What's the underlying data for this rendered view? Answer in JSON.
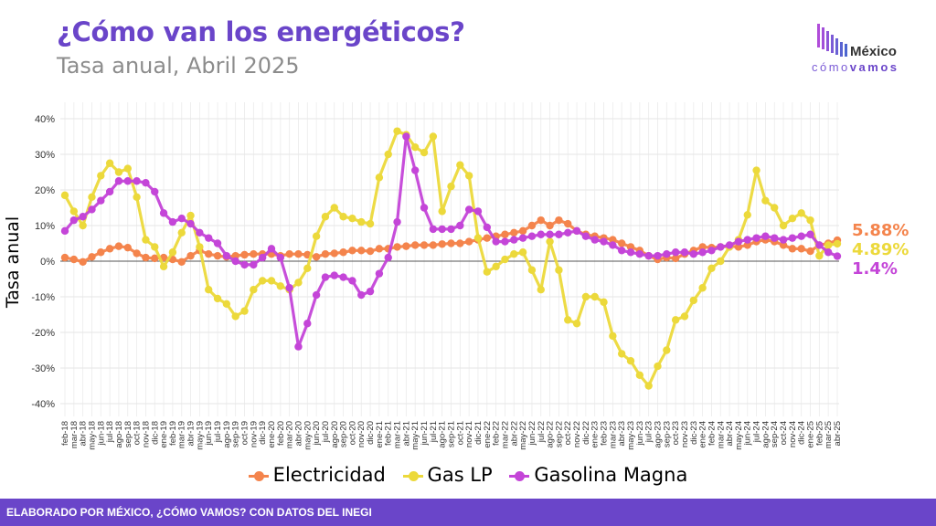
{
  "header": {
    "title": "¿Cómo van los energéticos?",
    "subtitle": "Tasa anual, Abril 2025"
  },
  "logo": {
    "top": "México",
    "bottom_a": "cómo",
    "bottom_b": "vamos"
  },
  "footer": {
    "text": "ELABORADO POR MÉXICO, ¿CÓMO VAMOS? CON DATOS DEL INEGI"
  },
  "colors": {
    "electricidad": "#f4844c",
    "gaslp": "#ecd93b",
    "gasolina": "#c445d8",
    "title": "#6a45c9",
    "footer": "#6a45c9"
  },
  "chart_data": {
    "type": "line",
    "ylabel": "Tasa anual",
    "xlabel": "",
    "ylim": [
      -40,
      40
    ],
    "yticks": [
      -40,
      -30,
      -20,
      -10,
      0,
      10,
      20,
      30,
      40
    ],
    "ytick_labels": [
      "-40%",
      "-30%",
      "-20%",
      "-10%",
      "0%",
      "10%",
      "20%",
      "30%",
      "40%"
    ],
    "grid": true,
    "legend": "bottom",
    "x": [
      "feb-18",
      "mar-18",
      "abr-18",
      "may-18",
      "jun-18",
      "jul-18",
      "ago-18",
      "sep-18",
      "oct-18",
      "nov-18",
      "dic-18",
      "ene-19",
      "feb-19",
      "mar-19",
      "abr-19",
      "may-19",
      "jun-19",
      "jul-19",
      "ago-19",
      "sep-19",
      "oct-19",
      "nov-19",
      "dic-19",
      "ene-20",
      "feb-20",
      "mar-20",
      "abr-20",
      "may-20",
      "jun-20",
      "jul-20",
      "ago-20",
      "sep-20",
      "oct-20",
      "nov-20",
      "dic-20",
      "ene-21",
      "feb-21",
      "mar-21",
      "abr-21",
      "may-21",
      "jun-21",
      "jul-21",
      "ago-21",
      "sep-21",
      "oct-21",
      "nov-21",
      "dic-21",
      "ene-22",
      "feb-22",
      "mar-22",
      "abr-22",
      "may-22",
      "jun-22",
      "jul-22",
      "ago-22",
      "sep-22",
      "oct-22",
      "nov-22",
      "dic-22",
      "ene-23",
      "feb-23",
      "mar-23",
      "abr-23",
      "may-23",
      "jun-23",
      "jul-23",
      "ago-23",
      "sep-23",
      "oct-23",
      "nov-23",
      "dic-23",
      "ene-24",
      "feb-24",
      "mar-24",
      "abr-24",
      "may-24",
      "jun-24",
      "jul-24",
      "ago-24",
      "sep-24",
      "oct-24",
      "nov-24",
      "dic-24",
      "ene-25",
      "feb-25",
      "mar-25",
      "abr-25"
    ],
    "x_index": [
      0,
      1,
      2,
      3,
      4,
      5,
      6,
      7,
      8,
      9,
      10,
      11,
      12,
      13,
      14,
      15,
      16,
      17,
      18,
      19,
      20,
      21,
      22,
      23,
      24,
      25,
      26,
      27,
      28,
      29,
      30,
      31,
      32,
      33,
      34,
      35,
      36,
      37,
      38,
      39,
      40,
      41,
      42,
      43,
      44,
      45,
      46,
      47,
      48,
      49,
      50,
      51,
      52,
      53,
      54,
      55,
      56,
      57,
      58,
      59,
      60,
      61,
      62,
      63,
      64,
      65,
      66,
      67,
      68,
      69,
      70,
      71,
      72,
      73,
      74,
      75,
      76,
      77,
      78,
      79,
      80,
      81,
      82,
      83,
      84,
      85,
      86
    ],
    "series": [
      {
        "name": "Electricidad",
        "final_label": "5.88%",
        "values": [
          1.0,
          0.5,
          -0.2,
          1.2,
          2.5,
          3.5,
          4.2,
          3.8,
          2.2,
          1.0,
          0.8,
          1.0,
          0.5,
          -0.2,
          1.5,
          3.0,
          2.0,
          1.5,
          1.2,
          1.5,
          1.8,
          2.0,
          2.0,
          2.0,
          1.5,
          2.0,
          2.0,
          1.8,
          1.2,
          2.0,
          2.2,
          2.5,
          3.0,
          3.0,
          2.8,
          3.5,
          3.5,
          4.0,
          4.2,
          4.5,
          4.5,
          4.5,
          4.8,
          5.0,
          5.0,
          5.5,
          6.0,
          6.5,
          7.0,
          7.5,
          8.0,
          8.5,
          10.0,
          11.5,
          10.0,
          11.5,
          10.5,
          8.5,
          7.5,
          7.0,
          6.5,
          6.0,
          5.0,
          4.0,
          3.0,
          1.5,
          0.5,
          1.0,
          0.8,
          2.0,
          3.0,
          4.0,
          3.8,
          4.0,
          4.2,
          4.0,
          4.5,
          5.5,
          6.0,
          5.5,
          4.5,
          3.5,
          3.5,
          2.8,
          4.5,
          5.0,
          5.88
        ]
      },
      {
        "name": "Gas LP",
        "final_label": "4.89%",
        "values": [
          18.5,
          14.0,
          10.0,
          18.0,
          24.0,
          27.5,
          25.0,
          26.0,
          18.0,
          6.0,
          4.0,
          -1.5,
          2.5,
          8.0,
          12.8,
          4.0,
          -8.0,
          -10.5,
          -12.0,
          -15.5,
          -14.0,
          -8.0,
          -5.5,
          -5.5,
          -7.0,
          -8.0,
          -6.0,
          -2.0,
          7.0,
          12.5,
          15.0,
          12.5,
          12.0,
          11.0,
          10.5,
          23.5,
          30.0,
          36.5,
          35.5,
          32.0,
          30.5,
          35.0,
          14.0,
          21.0,
          27.0,
          24.0,
          6.5,
          -3.0,
          -1.5,
          0.5,
          2.0,
          2.5,
          -2.5,
          -8.0,
          5.5,
          -2.5,
          -16.5,
          -17.5,
          -10.0,
          -10.0,
          -11.5,
          -21.0,
          -26.0,
          -28.0,
          -32.0,
          -35.0,
          -29.5,
          -25.0,
          -16.5,
          -15.5,
          -11.0,
          -7.5,
          -2.0,
          0.0,
          4.0,
          6.0,
          13.0,
          25.5,
          17.0,
          15.0,
          10.0,
          12.0,
          13.5,
          11.5,
          1.5,
          4.5,
          4.89
        ]
      },
      {
        "name": "Gasolina Magna",
        "final_label": "1.4%",
        "values": [
          8.5,
          11.5,
          12.5,
          14.5,
          17.0,
          19.5,
          22.5,
          22.5,
          22.5,
          22.0,
          19.5,
          13.5,
          11.0,
          12.0,
          10.5,
          8.0,
          6.5,
          5.0,
          1.5,
          0.0,
          -1.0,
          -1.0,
          1.0,
          3.5,
          1.0,
          -7.5,
          -24.0,
          -17.5,
          -9.5,
          -4.5,
          -4.0,
          -4.5,
          -5.5,
          -9.5,
          -8.5,
          -3.5,
          1.0,
          11.0,
          35.0,
          25.5,
          15.0,
          9.0,
          9.0,
          9.0,
          10.0,
          14.5,
          14.0,
          9.5,
          5.5,
          5.5,
          6.0,
          6.5,
          7.0,
          7.5,
          7.5,
          7.5,
          8.0,
          8.5,
          7.0,
          6.0,
          5.5,
          4.5,
          3.0,
          2.5,
          2.0,
          1.5,
          1.5,
          2.0,
          2.5,
          2.5,
          2.0,
          2.5,
          3.0,
          4.0,
          4.5,
          5.5,
          6.0,
          6.5,
          7.0,
          6.5,
          6.0,
          6.5,
          7.0,
          7.5,
          4.5,
          2.5,
          1.4
        ]
      }
    ]
  }
}
